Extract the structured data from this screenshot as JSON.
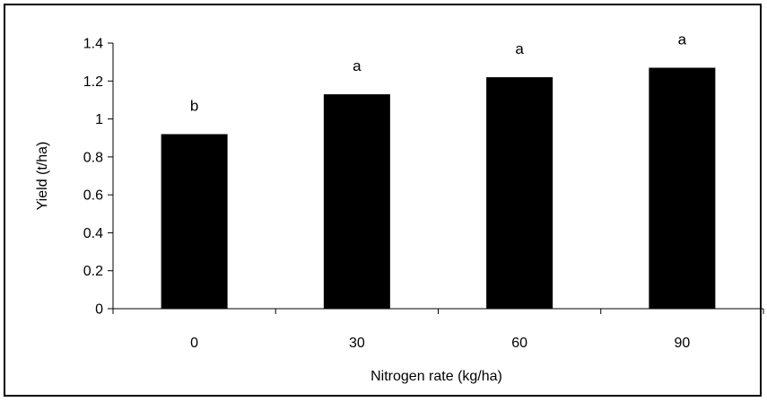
{
  "chart_data": {
    "type": "bar",
    "title": "",
    "xlabel": "Nitrogen rate (kg/ha)",
    "ylabel": "Yield (t/ha)",
    "categories": [
      "0",
      "30",
      "60",
      "90"
    ],
    "values": [
      0.92,
      1.13,
      1.22,
      1.27
    ],
    "significance_letters": [
      "b",
      "a",
      "a",
      "a"
    ],
    "ylim": [
      0,
      1.4
    ],
    "yticks": [
      "0",
      "0.2",
      "0.4",
      "0.6",
      "0.8",
      "1",
      "1.2",
      "1.4"
    ],
    "grid": false,
    "legend": "none",
    "bar_color": "#000000"
  }
}
